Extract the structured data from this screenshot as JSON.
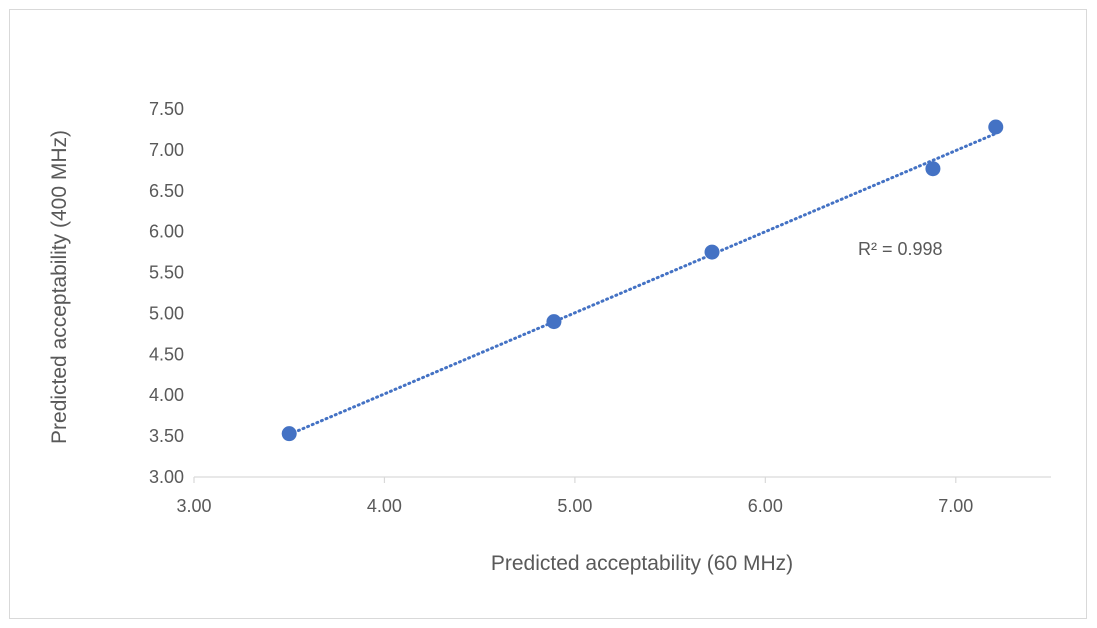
{
  "chart_data": {
    "type": "scatter",
    "title": "",
    "xlabel": "Predicted acceptability (60 MHz)",
    "ylabel": "Predicted acceptability (400 MHz)",
    "xlim": [
      3.0,
      7.5
    ],
    "ylim": [
      3.0,
      7.5
    ],
    "x_ticks": [
      "3.00",
      "4.00",
      "5.00",
      "6.00",
      "7.00"
    ],
    "y_ticks": [
      "3.00",
      "3.50",
      "4.00",
      "4.50",
      "5.00",
      "5.50",
      "6.00",
      "6.50",
      "7.00",
      "7.50"
    ],
    "series": [
      {
        "points": [
          {
            "x": 3.5,
            "y": 3.53
          },
          {
            "x": 4.89,
            "y": 4.9
          },
          {
            "x": 5.72,
            "y": 5.75
          },
          {
            "x": 6.88,
            "y": 6.77
          },
          {
            "x": 7.21,
            "y": 7.28
          }
        ],
        "color": "#4472c4"
      }
    ],
    "trendline": {
      "type": "linear",
      "from": {
        "x": 3.5,
        "y": 3.52
      },
      "to": {
        "x": 7.21,
        "y": 7.2
      },
      "style": "dotted",
      "color": "#4472c4"
    },
    "annotation": "R² = 0.998",
    "grid": false,
    "legend": "none"
  }
}
